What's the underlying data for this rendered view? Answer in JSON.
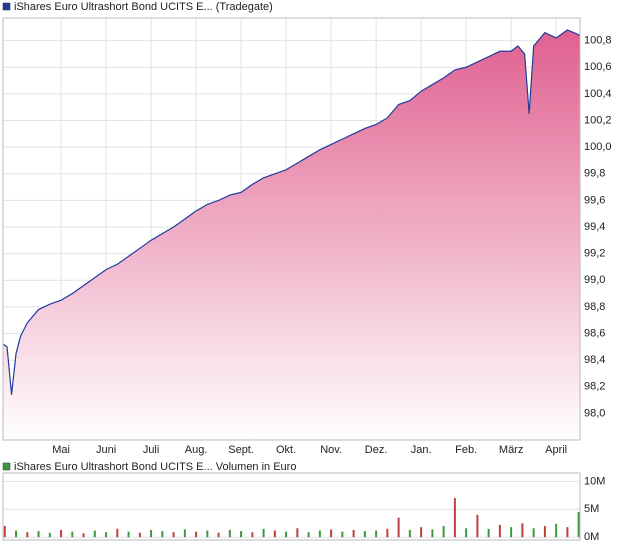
{
  "chart_data": [
    {
      "type": "area",
      "title": "iShares Euro Ultrashort Bond UCITS E... (Tradegate)",
      "legend_color": "#1f3b9e",
      "color": "#1f3b9e",
      "fill": "#e0608f",
      "grid": true,
      "x": [
        -0.29,
        -0.2,
        -0.1,
        0,
        0.1,
        0.25,
        0.5,
        0.75,
        1,
        1.25,
        1.5,
        1.75,
        2,
        2.25,
        2.5,
        2.75,
        3,
        3.25,
        3.5,
        3.75,
        4,
        4.25,
        4.5,
        4.75,
        5,
        5.25,
        5.5,
        5.75,
        6,
        6.25,
        6.5,
        6.75,
        7,
        7.25,
        7.5,
        7.75,
        8,
        8.25,
        8.5,
        8.75,
        9,
        9.25,
        9.5,
        9.75,
        10,
        10.25,
        10.5,
        10.75,
        11,
        11.15,
        11.3,
        11.4,
        11.5,
        11.6,
        11.75,
        12,
        12.25,
        12.53
      ],
      "values": [
        98.52,
        98.5,
        98.14,
        98.45,
        98.58,
        98.68,
        98.78,
        98.82,
        98.85,
        98.9,
        98.96,
        99.02,
        99.08,
        99.12,
        99.18,
        99.24,
        99.3,
        99.35,
        99.4,
        99.46,
        99.52,
        99.57,
        99.6,
        99.64,
        99.66,
        99.72,
        99.77,
        99.8,
        99.83,
        99.88,
        99.93,
        99.98,
        100.02,
        100.06,
        100.1,
        100.14,
        100.17,
        100.22,
        100.32,
        100.35,
        100.42,
        100.47,
        100.52,
        100.58,
        100.6,
        100.64,
        100.68,
        100.72,
        100.72,
        100.76,
        100.7,
        100.25,
        100.76,
        100.8,
        100.86,
        100.82,
        100.88,
        100.84
      ],
      "xlim": [
        -0.29,
        12.53
      ],
      "xticks": [
        {
          "value": 1,
          "label": "Mai"
        },
        {
          "value": 2,
          "label": "Juni"
        },
        {
          "value": 3,
          "label": "Juli"
        },
        {
          "value": 4,
          "label": "Aug."
        },
        {
          "value": 5,
          "label": "Sept."
        },
        {
          "value": 6,
          "label": "Okt."
        },
        {
          "value": 7,
          "label": "Nov."
        },
        {
          "value": 8,
          "label": "Dez."
        },
        {
          "value": 9,
          "label": "Jan."
        },
        {
          "value": 10,
          "label": "Feb."
        },
        {
          "value": 11,
          "label": "März"
        },
        {
          "value": 12,
          "label": "April"
        }
      ],
      "ylim": [
        97.8,
        100.97
      ],
      "yticks": [
        {
          "value": 98.0,
          "label": "98,0"
        },
        {
          "value": 98.2,
          "label": "98,2"
        },
        {
          "value": 98.4,
          "label": "98,4"
        },
        {
          "value": 98.6,
          "label": "98,6"
        },
        {
          "value": 98.8,
          "label": "98,8"
        },
        {
          "value": 99.0,
          "label": "99,0"
        },
        {
          "value": 99.2,
          "label": "99,2"
        },
        {
          "value": 99.4,
          "label": "99,4"
        },
        {
          "value": 99.6,
          "label": "99,6"
        },
        {
          "value": 99.8,
          "label": "99,8"
        },
        {
          "value": 100.0,
          "label": "100,0"
        },
        {
          "value": 100.2,
          "label": "100,2"
        },
        {
          "value": 100.4,
          "label": "100,4"
        },
        {
          "value": 100.6,
          "label": "100,6"
        },
        {
          "value": 100.8,
          "label": "100,8"
        }
      ]
    },
    {
      "type": "bar",
      "title": "iShares Euro Ultrashort Bond UCITS E... Volumen in Euro",
      "legend_color": "#3c9a3c",
      "grid": true,
      "x": [
        -0.25,
        0,
        0.25,
        0.5,
        0.75,
        1,
        1.25,
        1.5,
        1.75,
        2,
        2.25,
        2.5,
        2.75,
        3,
        3.25,
        3.5,
        3.75,
        4,
        4.25,
        4.5,
        4.75,
        5,
        5.25,
        5.5,
        5.75,
        6,
        6.25,
        6.5,
        6.75,
        7,
        7.25,
        7.5,
        7.75,
        8,
        8.25,
        8.5,
        8.75,
        9,
        9.25,
        9.5,
        9.75,
        10,
        10.25,
        10.5,
        10.75,
        11,
        11.25,
        11.5,
        11.75,
        12,
        12.25,
        12.5
      ],
      "values": [
        2000000,
        1200000,
        900000,
        1100000,
        800000,
        1300000,
        1000000,
        700000,
        1200000,
        900000,
        1500000,
        1000000,
        800000,
        1300000,
        1100000,
        900000,
        1400000,
        1000000,
        1200000,
        800000,
        1300000,
        1100000,
        900000,
        1500000,
        1200000,
        1000000,
        1600000,
        900000,
        1200000,
        1400000,
        1000000,
        1300000,
        1100000,
        1200000,
        1500000,
        3500000,
        1300000,
        1800000,
        1400000,
        2000000,
        7000000,
        1600000,
        4000000,
        1500000,
        2200000,
        1800000,
        2500000,
        1600000,
        2000000,
        2400000,
        1800000,
        4500000
      ],
      "colors": [
        "#c04040",
        "#3c9a3c",
        "#c04040",
        "#3c9a3c",
        "#3c9a3c",
        "#c04040",
        "#3c9a3c",
        "#c04040",
        "#3c9a3c",
        "#3c9a3c",
        "#c04040",
        "#3c9a3c",
        "#c04040",
        "#3c9a3c",
        "#3c9a3c",
        "#c04040",
        "#3c9a3c",
        "#c04040",
        "#3c9a3c",
        "#c04040",
        "#3c9a3c",
        "#3c9a3c",
        "#c04040",
        "#3c9a3c",
        "#c04040",
        "#3c9a3c",
        "#c04040",
        "#3c9a3c",
        "#3c9a3c",
        "#c04040",
        "#3c9a3c",
        "#c04040",
        "#3c9a3c",
        "#3c9a3c",
        "#c04040",
        "#c04040",
        "#3c9a3c",
        "#c04040",
        "#3c9a3c",
        "#3c9a3c",
        "#c04040",
        "#3c9a3c",
        "#c04040",
        "#3c9a3c",
        "#c04040",
        "#3c9a3c",
        "#c04040",
        "#3c9a3c",
        "#c04040",
        "#3c9a3c",
        "#c04040",
        "#3c9a3c"
      ],
      "xlim": [
        -0.29,
        12.53
      ],
      "ylim": [
        -500000,
        11500000
      ],
      "yticks": [
        {
          "value": 0,
          "label": "0M"
        },
        {
          "value": 5000000,
          "label": "5M"
        },
        {
          "value": 10000000,
          "label": "10M"
        }
      ]
    }
  ]
}
